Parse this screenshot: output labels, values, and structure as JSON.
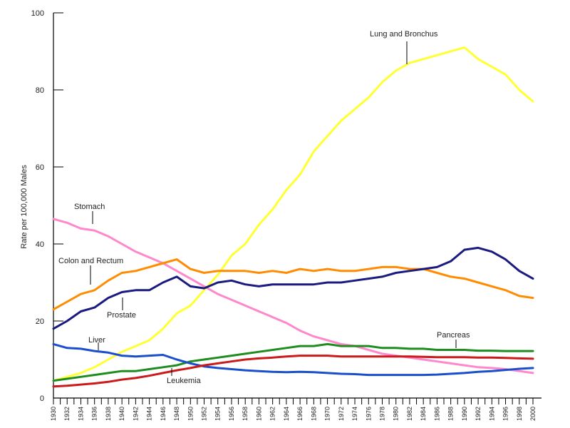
{
  "chart_data": {
    "type": "line",
    "xlabel": "",
    "ylabel": "Rate per 100,000 Males",
    "xlim": [
      1930,
      2000
    ],
    "ylim": [
      0,
      100
    ],
    "y_ticks": [
      0,
      20,
      40,
      60,
      80,
      100
    ],
    "x_ticks": [
      1930,
      1932,
      1934,
      1936,
      1938,
      1940,
      1942,
      1944,
      1946,
      1948,
      1950,
      1952,
      1954,
      1956,
      1958,
      1960,
      1962,
      1964,
      1966,
      1968,
      1970,
      1972,
      1974,
      1976,
      1978,
      1980,
      1982,
      1984,
      1986,
      1988,
      1990,
      1992,
      1994,
      1996,
      1998,
      2000
    ],
    "grid": false,
    "series": [
      {
        "name": "Lung and Bronchus",
        "color": "#ffff33",
        "x": [
          1930,
          1932,
          1934,
          1936,
          1938,
          1940,
          1942,
          1944,
          1946,
          1948,
          1950,
          1952,
          1954,
          1956,
          1958,
          1960,
          1962,
          1964,
          1966,
          1968,
          1970,
          1972,
          1974,
          1976,
          1978,
          1980,
          1982,
          1984,
          1986,
          1988,
          1990,
          1992,
          1994,
          1996,
          1998,
          2000
        ],
        "values": [
          4.5,
          5.5,
          6.5,
          8,
          10,
          12,
          13.5,
          15,
          18,
          22,
          24,
          28,
          32,
          37,
          40,
          45,
          49,
          54,
          58,
          64,
          68,
          72,
          75,
          78,
          82,
          85,
          87,
          88,
          89,
          90,
          91,
          88,
          86,
          84,
          80,
          77
        ]
      },
      {
        "name": "Stomach",
        "color": "#ff88cc",
        "x": [
          1930,
          1932,
          1934,
          1936,
          1938,
          1940,
          1942,
          1944,
          1946,
          1948,
          1950,
          1952,
          1954,
          1956,
          1958,
          1960,
          1962,
          1964,
          1966,
          1968,
          1970,
          1972,
          1974,
          1976,
          1978,
          1980,
          1982,
          1984,
          1986,
          1988,
          1990,
          1992,
          1994,
          1996,
          1998,
          2000
        ],
        "values": [
          46.5,
          45.5,
          44,
          43.5,
          42,
          40,
          38,
          36.5,
          35,
          33,
          31,
          29,
          27,
          25.5,
          24,
          22.5,
          21,
          19.5,
          17.5,
          16,
          15,
          14,
          13.5,
          12.5,
          11.5,
          11,
          10.5,
          10,
          9.5,
          9,
          8.5,
          8,
          7.8,
          7.5,
          7,
          6.5
        ]
      },
      {
        "name": "Colon and Rectum",
        "color": "#ff8c00",
        "x": [
          1930,
          1932,
          1934,
          1936,
          1938,
          1940,
          1942,
          1944,
          1946,
          1948,
          1950,
          1952,
          1954,
          1956,
          1958,
          1960,
          1962,
          1964,
          1966,
          1968,
          1970,
          1972,
          1974,
          1976,
          1978,
          1980,
          1982,
          1984,
          1986,
          1988,
          1990,
          1992,
          1994,
          1996,
          1998,
          2000
        ],
        "values": [
          23,
          25,
          27,
          28,
          30.5,
          32.5,
          33,
          34,
          35,
          36,
          33.5,
          32.5,
          33,
          33,
          33,
          32.5,
          33,
          32.5,
          33.5,
          33,
          33.5,
          33,
          33,
          33.5,
          34,
          34,
          33.5,
          33.5,
          32.5,
          31.5,
          31,
          30,
          29,
          28,
          26.5,
          26
        ]
      },
      {
        "name": "Prostate",
        "color": "#1a1a80",
        "x": [
          1930,
          1932,
          1934,
          1936,
          1938,
          1940,
          1942,
          1944,
          1946,
          1948,
          1950,
          1952,
          1954,
          1956,
          1958,
          1960,
          1962,
          1964,
          1966,
          1968,
          1970,
          1972,
          1974,
          1976,
          1978,
          1980,
          1982,
          1984,
          1986,
          1988,
          1990,
          1992,
          1994,
          1996,
          1998,
          2000
        ],
        "values": [
          18,
          20,
          22.5,
          23.5,
          26,
          27.5,
          28,
          28,
          30,
          31.5,
          29,
          28.5,
          30,
          30.5,
          29.5,
          29,
          29.5,
          29.5,
          29.5,
          29.5,
          30,
          30,
          30.5,
          31,
          31.5,
          32.5,
          33,
          33.5,
          34,
          35.5,
          38.5,
          39,
          38,
          36,
          33,
          31
        ]
      },
      {
        "name": "Pancreas",
        "color": "#1e8c1e",
        "x": [
          1930,
          1932,
          1934,
          1936,
          1938,
          1940,
          1942,
          1944,
          1946,
          1948,
          1950,
          1952,
          1954,
          1956,
          1958,
          1960,
          1962,
          1964,
          1966,
          1968,
          1970,
          1972,
          1974,
          1976,
          1978,
          1980,
          1982,
          1984,
          1986,
          1988,
          1990,
          1992,
          1994,
          1996,
          1998,
          2000
        ],
        "values": [
          4.5,
          5,
          5.5,
          6,
          6.5,
          7,
          7,
          7.5,
          8,
          8.5,
          9.5,
          10,
          10.5,
          11,
          11.5,
          12,
          12.5,
          13,
          13.5,
          13.5,
          14,
          13.5,
          13.5,
          13.5,
          13,
          13,
          12.8,
          12.8,
          12.5,
          12.5,
          12.5,
          12.3,
          12.3,
          12.2,
          12.2,
          12.2
        ]
      },
      {
        "name": "Liver",
        "color": "#1a4fcc",
        "x": [
          1930,
          1932,
          1934,
          1936,
          1938,
          1940,
          1942,
          1944,
          1946,
          1948,
          1950,
          1952,
          1954,
          1956,
          1958,
          1960,
          1962,
          1964,
          1966,
          1968,
          1970,
          1972,
          1974,
          1976,
          1978,
          1980,
          1982,
          1984,
          1986,
          1988,
          1990,
          1992,
          1994,
          1996,
          1998,
          2000
        ],
        "values": [
          14,
          13,
          12.8,
          12.2,
          11.8,
          11,
          10.8,
          11,
          11.2,
          10,
          9,
          8.2,
          7.8,
          7.5,
          7.2,
          7,
          6.8,
          6.7,
          6.8,
          6.7,
          6.5,
          6.3,
          6.2,
          6,
          6,
          6,
          6,
          6,
          6.1,
          6.3,
          6.5,
          6.8,
          7,
          7.3,
          7.6,
          7.8
        ]
      },
      {
        "name": "Leukemia",
        "color": "#cc1a1a",
        "x": [
          1930,
          1932,
          1934,
          1936,
          1938,
          1940,
          1942,
          1944,
          1946,
          1948,
          1950,
          1952,
          1954,
          1956,
          1958,
          1960,
          1962,
          1964,
          1966,
          1968,
          1970,
          1972,
          1974,
          1976,
          1978,
          1980,
          1982,
          1984,
          1986,
          1988,
          1990,
          1992,
          1994,
          1996,
          1998,
          2000
        ],
        "values": [
          3,
          3.2,
          3.5,
          3.8,
          4.2,
          4.8,
          5.2,
          5.8,
          6.5,
          7.2,
          7.8,
          8.5,
          9,
          9.5,
          10,
          10.3,
          10.5,
          10.8,
          11,
          11,
          11,
          10.8,
          10.8,
          10.8,
          10.8,
          10.8,
          10.8,
          10.7,
          10.6,
          10.6,
          10.6,
          10.5,
          10.5,
          10.4,
          10.3,
          10.2
        ]
      }
    ]
  }
}
